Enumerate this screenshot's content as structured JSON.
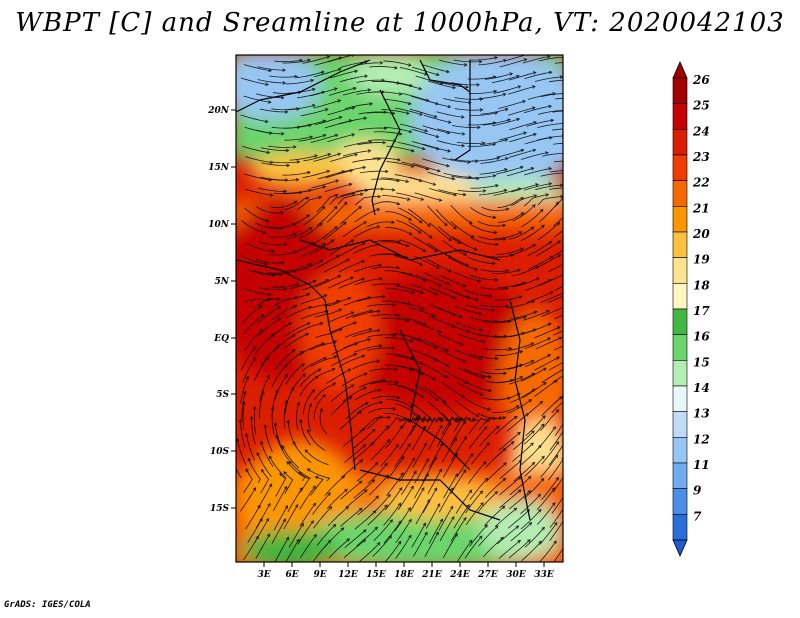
{
  "title": "WBPT [C] and Sreamline at 1000hPa, VT: 2020042103",
  "footer": "GrADS: IGES/COLA",
  "lat_labels": [
    "20N",
    "15N",
    "10N",
    "5N",
    "EQ",
    "5S",
    "10S",
    "15S"
  ],
  "lon_labels": [
    "3E",
    "6E",
    "9E",
    "12E",
    "15E",
    "18E",
    "21E",
    "24E",
    "27E",
    "30E",
    "33E"
  ],
  "colorbar": {
    "labels": [
      "26",
      "25",
      "24",
      "23",
      "22",
      "21",
      "20",
      "19",
      "18",
      "17",
      "16",
      "15",
      "14",
      "13",
      "12",
      "11",
      "9",
      "7"
    ],
    "colors": [
      "#a50000",
      "#c40000",
      "#dc1e00",
      "#f03c00",
      "#f56a00",
      "#fa9600",
      "#fcc040",
      "#fde290",
      "#fef6c0",
      "#41b641",
      "#6cd46c",
      "#b3edb3",
      "#e6f8f8",
      "#bfdbf6",
      "#98c6f3",
      "#6fabef",
      "#4a8ee8",
      "#2a6fd8"
    ],
    "top_color": "#a50000",
    "bottom_color": "#1e5ad0"
  }
}
